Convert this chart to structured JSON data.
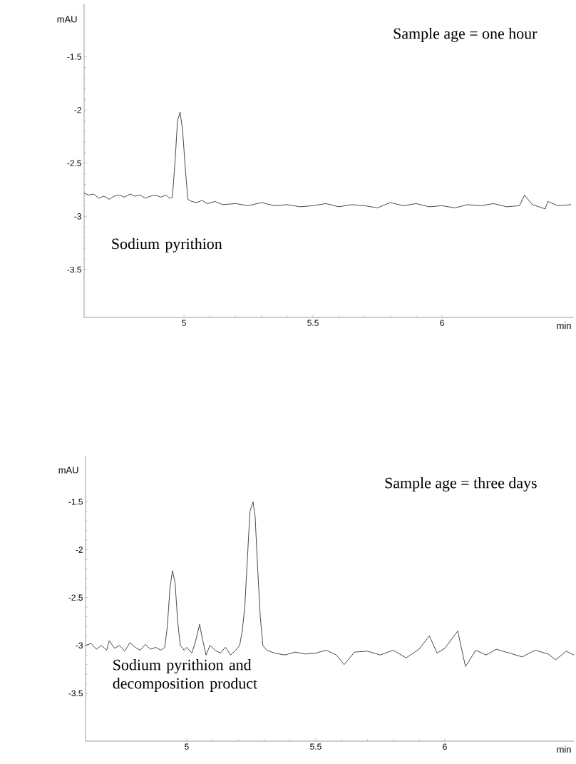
{
  "chart_data": [
    {
      "type": "line",
      "xlabel": "min",
      "ylabel": "mAU",
      "color": "#1a1a1a",
      "line_style": "solid",
      "marker": "none",
      "xlim": [
        4.613,
        6.511
      ],
      "ylim": [
        -3.95,
        -1.0
      ],
      "xticks": [
        5,
        5.5,
        6
      ],
      "yticks": [
        -3.5,
        -3,
        -2.5,
        -2,
        -1.5
      ],
      "x": [
        4.613,
        4.63,
        4.65,
        4.67,
        4.69,
        4.71,
        4.73,
        4.75,
        4.77,
        4.79,
        4.81,
        4.83,
        4.85,
        4.87,
        4.89,
        4.91,
        4.93,
        4.945,
        4.955,
        4.965,
        4.975,
        4.985,
        4.995,
        5.005,
        5.015,
        5.03,
        5.05,
        5.07,
        5.09,
        5.12,
        5.15,
        5.2,
        5.25,
        5.3,
        5.35,
        5.4,
        5.45,
        5.5,
        5.55,
        5.6,
        5.65,
        5.7,
        5.75,
        5.8,
        5.85,
        5.9,
        5.95,
        6.0,
        6.05,
        6.1,
        6.15,
        6.2,
        6.25,
        6.3,
        6.32,
        6.35,
        6.4,
        6.41,
        6.45,
        6.5
      ],
      "values": [
        -2.78,
        -2.8,
        -2.79,
        -2.83,
        -2.81,
        -2.84,
        -2.81,
        -2.8,
        -2.82,
        -2.79,
        -2.81,
        -2.8,
        -2.83,
        -2.81,
        -2.8,
        -2.82,
        -2.8,
        -2.83,
        -2.82,
        -2.5,
        -2.1,
        -2.02,
        -2.2,
        -2.55,
        -2.84,
        -2.86,
        -2.87,
        -2.85,
        -2.88,
        -2.86,
        -2.89,
        -2.88,
        -2.9,
        -2.87,
        -2.9,
        -2.89,
        -2.91,
        -2.9,
        -2.88,
        -2.91,
        -2.89,
        -2.9,
        -2.92,
        -2.87,
        -2.9,
        -2.88,
        -2.91,
        -2.9,
        -2.92,
        -2.89,
        -2.9,
        -2.88,
        -2.91,
        -2.9,
        -2.8,
        -2.89,
        -2.93,
        -2.86,
        -2.9,
        -2.89
      ],
      "annotations": [
        "Sample age = one hour",
        "Sodium pyrithion"
      ]
    },
    {
      "type": "line",
      "xlabel": "min",
      "ylabel": "mAU",
      "color": "#1a1a1a",
      "line_style": "solid",
      "marker": "none",
      "xlim": [
        4.608,
        6.5
      ],
      "ylim": [
        -4.0,
        -1.02
      ],
      "xticks": [
        5,
        5.5,
        6
      ],
      "yticks": [
        -3.5,
        -3,
        -2.5,
        -2,
        -1.5
      ],
      "x": [
        4.608,
        4.63,
        4.65,
        4.67,
        4.69,
        4.7,
        4.72,
        4.74,
        4.76,
        4.78,
        4.8,
        4.82,
        4.84,
        4.86,
        4.88,
        4.9,
        4.915,
        4.925,
        4.935,
        4.945,
        4.955,
        4.965,
        4.975,
        4.99,
        5.0,
        5.02,
        5.035,
        5.05,
        5.06,
        5.075,
        5.09,
        5.11,
        5.13,
        5.15,
        5.17,
        5.19,
        5.205,
        5.215,
        5.225,
        5.235,
        5.245,
        5.257,
        5.265,
        5.275,
        5.285,
        5.295,
        5.31,
        5.34,
        5.38,
        5.42,
        5.46,
        5.5,
        5.54,
        5.58,
        5.61,
        5.65,
        5.7,
        5.75,
        5.8,
        5.85,
        5.9,
        5.94,
        5.97,
        6.0,
        6.05,
        6.08,
        6.12,
        6.16,
        6.2,
        6.25,
        6.3,
        6.35,
        6.4,
        6.43,
        6.47,
        6.5
      ],
      "values": [
        -3.0,
        -2.98,
        -3.04,
        -3.0,
        -3.05,
        -2.95,
        -3.03,
        -3.0,
        -3.06,
        -2.97,
        -3.02,
        -3.05,
        -2.99,
        -3.04,
        -3.02,
        -3.05,
        -3.02,
        -2.8,
        -2.4,
        -2.22,
        -2.35,
        -2.75,
        -3.0,
        -3.05,
        -3.02,
        -3.08,
        -2.95,
        -2.78,
        -2.92,
        -3.1,
        -3.0,
        -3.05,
        -3.08,
        -3.02,
        -3.1,
        -3.05,
        -3.0,
        -2.85,
        -2.6,
        -2.1,
        -1.6,
        -1.5,
        -1.65,
        -2.2,
        -2.7,
        -3.0,
        -3.05,
        -3.08,
        -3.1,
        -3.07,
        -3.09,
        -3.08,
        -3.05,
        -3.1,
        -3.2,
        -3.07,
        -3.06,
        -3.1,
        -3.05,
        -3.13,
        -3.04,
        -2.9,
        -3.08,
        -3.03,
        -2.85,
        -3.22,
        -3.05,
        -3.1,
        -3.04,
        -3.08,
        -3.12,
        -3.05,
        -3.09,
        -3.15,
        -3.06,
        -3.1
      ],
      "annotations": [
        "Sample age = three days",
        "Sodium pyrithion and decomposition product"
      ]
    }
  ]
}
